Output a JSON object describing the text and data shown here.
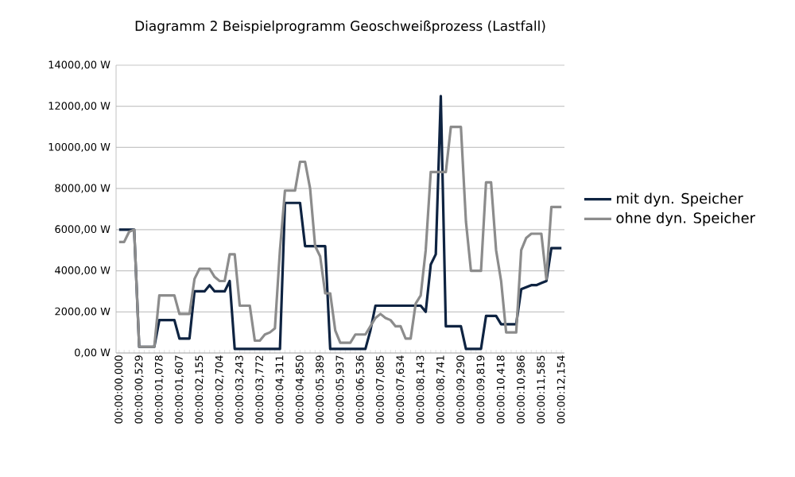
{
  "chart_data": {
    "type": "line",
    "title": "Diagramm 2  Beispielprogramm Geoschweißprozess (Lastfall)",
    "categories": [
      "00:00:00,000",
      null,
      null,
      null,
      "00:00:00,529",
      null,
      null,
      null,
      "00:00:01,078",
      null,
      null,
      null,
      "00:00:01,607",
      null,
      null,
      null,
      "00:00:02,155",
      null,
      null,
      null,
      "00:00:02,704",
      null,
      null,
      null,
      "00:00:03,243",
      null,
      null,
      null,
      "00:00:03,772",
      null,
      null,
      null,
      "00:00:04,311",
      null,
      null,
      null,
      "00:00:04,850",
      null,
      null,
      null,
      "00:00:05,389",
      null,
      null,
      null,
      "00:00:05,937",
      null,
      null,
      null,
      "00:00:06,536",
      null,
      null,
      null,
      "00:00:07,085",
      null,
      null,
      null,
      "00:00:07,634",
      null,
      null,
      null,
      "00:00:08,143",
      null,
      null,
      null,
      "00:00:08,741",
      null,
      null,
      null,
      "00:00:09,290",
      null,
      null,
      null,
      "00:00:09,819",
      null,
      null,
      null,
      "00:00:10,418",
      null,
      null,
      null,
      "00:00:10,986",
      null,
      null,
      null,
      "00:00:11,585",
      null,
      null,
      null,
      "00:00:12,154"
    ],
    "series": [
      {
        "name": "mit dyn. Speicher",
        "color": "#0e2341",
        "values": [
          6000,
          6000,
          6000,
          6000,
          300,
          300,
          300,
          300,
          1600,
          1600,
          1600,
          1600,
          700,
          700,
          700,
          3000,
          3000,
          3000,
          3300,
          3000,
          3000,
          3000,
          3500,
          200,
          200,
          200,
          200,
          200,
          200,
          200,
          200,
          200,
          200,
          7300,
          7300,
          7300,
          7300,
          5200,
          5200,
          5200,
          5200,
          5200,
          200,
          200,
          200,
          200,
          200,
          200,
          200,
          200,
          1100,
          2300,
          2300,
          2300,
          2300,
          2300,
          2300,
          2300,
          2300,
          2300,
          2300,
          2000,
          4300,
          4800,
          12500,
          1300,
          1300,
          1300,
          1300,
          200,
          200,
          200,
          200,
          1800,
          1800,
          1800,
          1400,
          1400,
          1400,
          1400,
          3100,
          3200,
          3300,
          3300,
          3400,
          3500,
          5100,
          5100,
          5100
        ]
      },
      {
        "name": "ohne dyn. Speicher",
        "color": "#8c8c8c",
        "values": [
          5400,
          5400,
          5900,
          6000,
          300,
          300,
          300,
          300,
          2800,
          2800,
          2800,
          2800,
          1900,
          1900,
          1900,
          3600,
          4100,
          4100,
          4100,
          3700,
          3500,
          3500,
          4800,
          4800,
          2300,
          2300,
          2300,
          600,
          600,
          900,
          1000,
          1200,
          5000,
          7900,
          7900,
          7900,
          9300,
          9300,
          8000,
          5200,
          4700,
          2900,
          2900,
          1100,
          500,
          500,
          500,
          900,
          900,
          900,
          1300,
          1700,
          1900,
          1700,
          1600,
          1300,
          1300,
          700,
          700,
          2400,
          2800,
          5000,
          8800,
          8800,
          8800,
          8800,
          11000,
          11000,
          11000,
          6400,
          4000,
          4000,
          4000,
          8300,
          8300,
          5000,
          3500,
          1000,
          1000,
          1000,
          5000,
          5600,
          5800,
          5800,
          5800,
          3600,
          7100,
          7100,
          7100
        ]
      }
    ],
    "ylim": [
      0,
      14000
    ],
    "yticks": [
      {
        "value": 0,
        "label": "0,00 W"
      },
      {
        "value": 2000,
        "label": "2000,00 W"
      },
      {
        "value": 4000,
        "label": "4000,00 W"
      },
      {
        "value": 6000,
        "label": "6000,00 W"
      },
      {
        "value": 8000,
        "label": "8000,00 W"
      },
      {
        "value": 10000,
        "label": "10000,00 W"
      },
      {
        "value": 12000,
        "label": "12000,00 W"
      },
      {
        "value": 14000,
        "label": "14000,00 W"
      }
    ],
    "grid": "y",
    "legend": "right",
    "marker": "none",
    "line_style": "solid"
  }
}
